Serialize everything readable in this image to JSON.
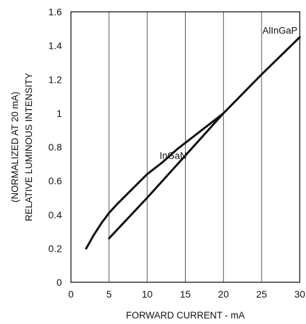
{
  "chart_data": {
    "type": "line",
    "xlabel": "FORWARD CURRENT - mA",
    "ylabel_lines": [
      "(NORMALIZED AT 20 mA)",
      "RELATIVE LUMINOUS INTENSITY"
    ],
    "xlim": [
      0,
      30
    ],
    "ylim": [
      0,
      1.6
    ],
    "x_ticks": [
      0,
      5,
      10,
      15,
      20,
      25,
      30
    ],
    "y_ticks": [
      0,
      0.2,
      0.4,
      0.6,
      0.8,
      1,
      1.2,
      1.4,
      1.6
    ],
    "x_tick_labels": [
      "0",
      "5",
      "10",
      "15",
      "20",
      "25",
      "30"
    ],
    "y_tick_labels": [
      "0",
      "0.2",
      "0.4",
      "0.6",
      "0.8",
      "1",
      "1.2",
      "1.4",
      "1.6"
    ],
    "grid": "vertical",
    "series": [
      {
        "name": "InGaN",
        "x": [
          2,
          3,
          4,
          5,
          6,
          8,
          10,
          12,
          14,
          16,
          18,
          20
        ],
        "y": [
          0.2,
          0.28,
          0.35,
          0.41,
          0.46,
          0.55,
          0.64,
          0.71,
          0.79,
          0.86,
          0.93,
          1.0
        ]
      },
      {
        "name": "AlInGaP",
        "x": [
          5,
          10,
          15,
          20,
          25,
          30
        ],
        "y": [
          0.26,
          0.5,
          0.75,
          1.0,
          1.23,
          1.45
        ]
      }
    ],
    "series_label_positions": [
      {
        "name": "InGaN",
        "x": 13.4,
        "y": 0.73
      },
      {
        "name": "AlInGaP",
        "x": 27.4,
        "y": 1.47
      }
    ]
  }
}
